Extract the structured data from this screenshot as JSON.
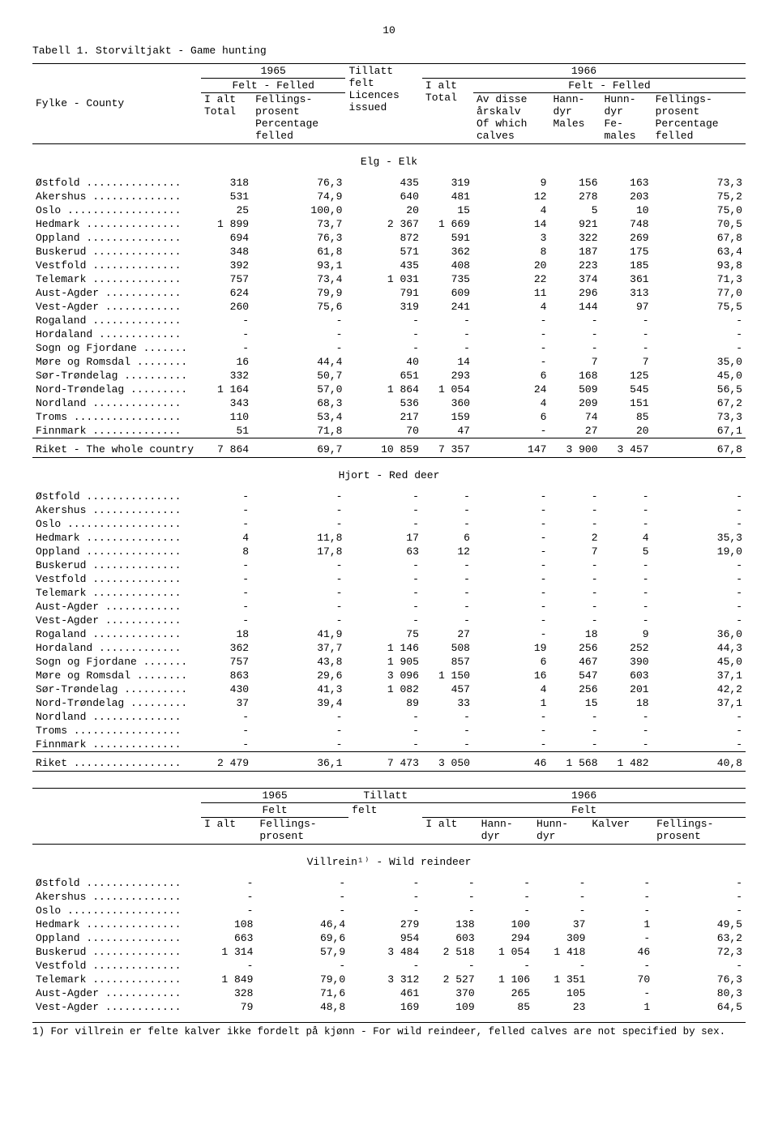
{
  "page_number": "10",
  "title": "Tabell 1.  Storviltjakt - Game hunting",
  "footnote": "1)  For villrein er felte kalver ikke fordelt på kjønn - For wild reindeer, felled calves are not specified by sex.",
  "header1": {
    "y1965": "1965",
    "y1966": "1966",
    "felt": "Felt - Felled",
    "fylke": "Fylke - County",
    "ialt": "I alt\nTotal",
    "fprosent": "Fellings-\nprosent\nPercentage\nfelled",
    "tillatt": "Tillatt\nfelt\nLicences\nissued",
    "ialt2": "I alt\nTotal",
    "avdisse": "Av disse\nårskalv\nOf which\ncalves",
    "hann": "Hann-\ndyr\nMales",
    "hunn": "Hunn-\ndyr\nFe-\nmales",
    "fprosent2": "Fellings-\nprosent\nPercentage\nfelled"
  },
  "header2": {
    "y1965": "1965",
    "y1966": "1966",
    "felt": "Felt",
    "tillatt_h": "Tillatt",
    "ialt": "I alt",
    "fprosent": "Fellings-\nprosent",
    "tillatt": "felt",
    "ialt2": "I alt",
    "hann": "Hann-\ndyr",
    "hunn": "Hunn-\ndyr",
    "kalver": "Kalver",
    "fprosent2": "Fellings-\nprosent"
  },
  "section1": "Elg - Elk",
  "section2": "Hjort - Red deer",
  "section3": "Villrein¹⁾ - Wild reindeer",
  "elk_rows": [
    [
      "Østfold ...............",
      "318",
      "76,3",
      "435",
      "319",
      "9",
      "156",
      "163",
      "73,3"
    ],
    [
      "Akershus ..............",
      "531",
      "74,9",
      "640",
      "481",
      "12",
      "278",
      "203",
      "75,2"
    ],
    [
      "Oslo ..................",
      "25",
      "100,0",
      "20",
      "15",
      "4",
      "5",
      "10",
      "75,0"
    ],
    [
      "Hedmark ...............",
      "1 899",
      "73,7",
      "2 367",
      "1 669",
      "14",
      "921",
      "748",
      "70,5"
    ],
    [
      "Oppland ...............",
      "694",
      "76,3",
      "872",
      "591",
      "3",
      "322",
      "269",
      "67,8"
    ],
    [
      "Buskerud ..............",
      "348",
      "61,8",
      "571",
      "362",
      "8",
      "187",
      "175",
      "63,4"
    ],
    [
      "Vestfold ..............",
      "392",
      "93,1",
      "435",
      "408",
      "20",
      "223",
      "185",
      "93,8"
    ],
    [
      "Telemark ..............",
      "757",
      "73,4",
      "1 031",
      "735",
      "22",
      "374",
      "361",
      "71,3"
    ],
    [
      "Aust-Agder ............",
      "624",
      "79,9",
      "791",
      "609",
      "11",
      "296",
      "313",
      "77,0"
    ],
    [
      "Vest-Agder ............",
      "260",
      "75,6",
      "319",
      "241",
      "4",
      "144",
      "97",
      "75,5"
    ],
    [
      "Rogaland ..............",
      "-",
      "-",
      "-",
      "-",
      "-",
      "-",
      "-",
      "-"
    ],
    [
      "Hordaland .............",
      "-",
      "-",
      "-",
      "-",
      "-",
      "-",
      "-",
      "-"
    ],
    [
      "Sogn og Fjordane .......",
      "-",
      "-",
      "-",
      "-",
      "-",
      "-",
      "-",
      "-"
    ],
    [
      "Møre og Romsdal ........",
      "16",
      "44,4",
      "40",
      "14",
      "-",
      "7",
      "7",
      "35,0"
    ],
    [
      "Sør-Trøndelag ..........",
      "332",
      "50,7",
      "651",
      "293",
      "6",
      "168",
      "125",
      "45,0"
    ],
    [
      "Nord-Trøndelag .........",
      "1 164",
      "57,0",
      "1 864",
      "1 054",
      "24",
      "509",
      "545",
      "56,5"
    ],
    [
      "Nordland ..............",
      "343",
      "68,3",
      "536",
      "360",
      "4",
      "209",
      "151",
      "67,2"
    ],
    [
      "Troms .................",
      "110",
      "53,4",
      "217",
      "159",
      "6",
      "74",
      "85",
      "73,3"
    ],
    [
      "Finnmark ..............",
      "51",
      "71,8",
      "70",
      "47",
      "-",
      "27",
      "20",
      "67,1"
    ]
  ],
  "elk_total": [
    "Riket - The whole country",
    "7 864",
    "69,7",
    "10 859",
    "7 357",
    "147",
    "3 900",
    "3 457",
    "67,8"
  ],
  "deer_rows": [
    [
      "Østfold ...............",
      "-",
      "-",
      "-",
      "-",
      "-",
      "-",
      "-",
      "-"
    ],
    [
      "Akershus ..............",
      "-",
      "-",
      "-",
      "-",
      "-",
      "-",
      "-",
      "-"
    ],
    [
      "Oslo ..................",
      "-",
      "-",
      "-",
      "-",
      "-",
      "-",
      "-",
      "-"
    ],
    [
      "Hedmark ...............",
      "4",
      "11,8",
      "17",
      "6",
      "-",
      "2",
      "4",
      "35,3"
    ],
    [
      "Oppland ...............",
      "8",
      "17,8",
      "63",
      "12",
      "-",
      "7",
      "5",
      "19,0"
    ],
    [
      "Buskerud ..............",
      "-",
      "-",
      "-",
      "-",
      "-",
      "-",
      "-",
      "-"
    ],
    [
      "Vestfold ..............",
      "-",
      "-",
      "-",
      "-",
      "-",
      "-",
      "-",
      "-"
    ],
    [
      "Telemark ..............",
      "-",
      "-",
      "-",
      "-",
      "-",
      "-",
      "-",
      "-"
    ],
    [
      "Aust-Agder ............",
      "-",
      "-",
      "-",
      "-",
      "-",
      "-",
      "-",
      "-"
    ],
    [
      "Vest-Agder ............",
      "-",
      "-",
      "-",
      "-",
      "-",
      "-",
      "-",
      "-"
    ],
    [
      "Rogaland ..............",
      "18",
      "41,9",
      "75",
      "27",
      "-",
      "18",
      "9",
      "36,0"
    ],
    [
      "Hordaland .............",
      "362",
      "37,7",
      "1 146",
      "508",
      "19",
      "256",
      "252",
      "44,3"
    ],
    [
      "Sogn og Fjordane .......",
      "757",
      "43,8",
      "1 905",
      "857",
      "6",
      "467",
      "390",
      "45,0"
    ],
    [
      "Møre og Romsdal ........",
      "863",
      "29,6",
      "3 096",
      "1 150",
      "16",
      "547",
      "603",
      "37,1"
    ],
    [
      "Sør-Trøndelag ..........",
      "430",
      "41,3",
      "1 082",
      "457",
      "4",
      "256",
      "201",
      "42,2"
    ],
    [
      "Nord-Trøndelag .........",
      "37",
      "39,4",
      "89",
      "33",
      "1",
      "15",
      "18",
      "37,1"
    ],
    [
      "Nordland ..............",
      "-",
      "-",
      "-",
      "-",
      "-",
      "-",
      "-",
      "-"
    ],
    [
      "Troms .................",
      "-",
      "-",
      "-",
      "-",
      "-",
      "-",
      "-",
      "-"
    ],
    [
      "Finnmark ..............",
      "-",
      "-",
      "-",
      "-",
      "-",
      "-",
      "-",
      "-"
    ]
  ],
  "deer_total": [
    "Riket .................",
    "2 479",
    "36,1",
    "7 473",
    "3 050",
    "46",
    "1 568",
    "1 482",
    "40,8"
  ],
  "rein_rows": [
    [
      "Østfold ...............",
      "-",
      "-",
      "-",
      "-",
      "-",
      "-",
      "-",
      "-"
    ],
    [
      "Akershus ..............",
      "-",
      "-",
      "-",
      "-",
      "-",
      "-",
      "-",
      "-"
    ],
    [
      "Oslo ..................",
      "-",
      "-",
      "-",
      "-",
      "-",
      "-",
      "-",
      "-"
    ],
    [
      "Hedmark ...............",
      "108",
      "46,4",
      "279",
      "138",
      "100",
      "37",
      "1",
      "49,5"
    ],
    [
      "Oppland ...............",
      "663",
      "69,6",
      "954",
      "603",
      "294",
      "309",
      "-",
      "63,2"
    ],
    [
      "Buskerud ..............",
      "1 314",
      "57,9",
      "3 484",
      "2 518",
      "1 054",
      "1 418",
      "46",
      "72,3"
    ],
    [
      "Vestfold ..............",
      "-",
      "-",
      "-",
      "-",
      "-",
      "-",
      "-",
      "-"
    ],
    [
      "Telemark ..............",
      "1 849",
      "79,0",
      "3 312",
      "2 527",
      "1 106",
      "1 351",
      "70",
      "76,3"
    ],
    [
      "Aust-Agder ............",
      "328",
      "71,6",
      "461",
      "370",
      "265",
      "105",
      "-",
      "80,3"
    ],
    [
      "Vest-Agder ............",
      "79",
      "48,8",
      "169",
      "109",
      "85",
      "23",
      "1",
      "64,5"
    ]
  ]
}
